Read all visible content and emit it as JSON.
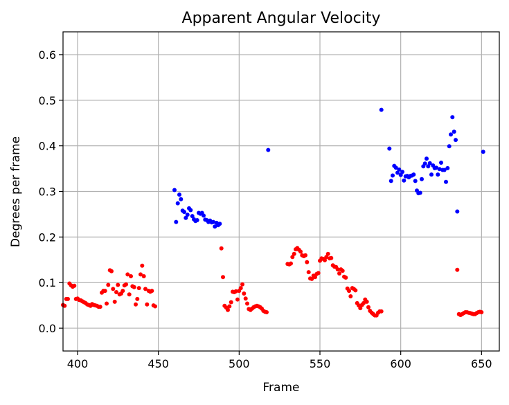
{
  "chart_data": {
    "type": "scatter",
    "title": "Apparent Angular Velocity",
    "xlabel": "Frame",
    "ylabel": "Degrees per frame",
    "xlim": [
      391,
      661
    ],
    "ylim": [
      -0.05,
      0.65
    ],
    "x_ticks": [
      400,
      450,
      500,
      550,
      600,
      650
    ],
    "y_ticks": [
      0.0,
      0.1,
      0.2,
      0.3,
      0.4,
      0.5,
      0.6
    ],
    "x_tick_labels": [
      "400",
      "450",
      "500",
      "550",
      "600",
      "650"
    ],
    "y_tick_labels": [
      "0.0",
      "0.1",
      "0.2",
      "0.3",
      "0.4",
      "0.5",
      "0.6"
    ],
    "grid": true,
    "legend": "none",
    "series": [
      {
        "color": "#0000ff",
        "points": [
          [
            460,
            0.303
          ],
          [
            461,
            0.233
          ],
          [
            462,
            0.274
          ],
          [
            463,
            0.293
          ],
          [
            464,
            0.283
          ],
          [
            465,
            0.258
          ],
          [
            466,
            0.255
          ],
          [
            467,
            0.242
          ],
          [
            468,
            0.249
          ],
          [
            469,
            0.263
          ],
          [
            470,
            0.259
          ],
          [
            471,
            0.246
          ],
          [
            472,
            0.239
          ],
          [
            473,
            0.235
          ],
          [
            474,
            0.237
          ],
          [
            475,
            0.253
          ],
          [
            476,
            0.251
          ],
          [
            477,
            0.253
          ],
          [
            478,
            0.247
          ],
          [
            479,
            0.238
          ],
          [
            480,
            0.237
          ],
          [
            481,
            0.233
          ],
          [
            482,
            0.236
          ],
          [
            483,
            0.232
          ],
          [
            484,
            0.233
          ],
          [
            485,
            0.223
          ],
          [
            486,
            0.231
          ],
          [
            487,
            0.226
          ],
          [
            488,
            0.229
          ],
          [
            518,
            0.391
          ],
          [
            588,
            0.479
          ],
          [
            593,
            0.394
          ],
          [
            594,
            0.323
          ],
          [
            595,
            0.335
          ],
          [
            596,
            0.356
          ],
          [
            597,
            0.352
          ],
          [
            598,
            0.341
          ],
          [
            599,
            0.348
          ],
          [
            600,
            0.336
          ],
          [
            601,
            0.343
          ],
          [
            602,
            0.324
          ],
          [
            603,
            0.333
          ],
          [
            604,
            0.334
          ],
          [
            605,
            0.331
          ],
          [
            606,
            0.334
          ],
          [
            607,
            0.335
          ],
          [
            608,
            0.337
          ],
          [
            609,
            0.323
          ],
          [
            610,
            0.302
          ],
          [
            611,
            0.296
          ],
          [
            612,
            0.297
          ],
          [
            613,
            0.327
          ],
          [
            614,
            0.355
          ],
          [
            615,
            0.361
          ],
          [
            616,
            0.372
          ],
          [
            617,
            0.355
          ],
          [
            618,
            0.362
          ],
          [
            619,
            0.337
          ],
          [
            620,
            0.357
          ],
          [
            621,
            0.351
          ],
          [
            622,
            0.352
          ],
          [
            623,
            0.337
          ],
          [
            624,
            0.349
          ],
          [
            625,
            0.363
          ],
          [
            626,
            0.347
          ],
          [
            627,
            0.347
          ],
          [
            628,
            0.321
          ],
          [
            629,
            0.351
          ],
          [
            630,
            0.399
          ],
          [
            631,
            0.425
          ],
          [
            632,
            0.463
          ],
          [
            633,
            0.431
          ],
          [
            634,
            0.413
          ],
          [
            635,
            0.256
          ],
          [
            651,
            0.387
          ]
        ]
      },
      {
        "color": "#ff0000",
        "points": [
          [
            391,
            0.051
          ],
          [
            392,
            0.049
          ],
          [
            393,
            0.064
          ],
          [
            394,
            0.064
          ],
          [
            395,
            0.098
          ],
          [
            396,
            0.094
          ],
          [
            397,
            0.091
          ],
          [
            398,
            0.093
          ],
          [
            399,
            0.064
          ],
          [
            400,
            0.065
          ],
          [
            401,
            0.062
          ],
          [
            402,
            0.061
          ],
          [
            403,
            0.059
          ],
          [
            404,
            0.057
          ],
          [
            405,
            0.055
          ],
          [
            406,
            0.052
          ],
          [
            407,
            0.051
          ],
          [
            408,
            0.049
          ],
          [
            409,
            0.053
          ],
          [
            410,
            0.051
          ],
          [
            411,
            0.05
          ],
          [
            412,
            0.049
          ],
          [
            413,
            0.047
          ],
          [
            414,
            0.047
          ],
          [
            415,
            0.078
          ],
          [
            416,
            0.082
          ],
          [
            417,
            0.082
          ],
          [
            418,
            0.054
          ],
          [
            419,
            0.095
          ],
          [
            420,
            0.127
          ],
          [
            421,
            0.125
          ],
          [
            422,
            0.086
          ],
          [
            423,
            0.058
          ],
          [
            424,
            0.079
          ],
          [
            425,
            0.095
          ],
          [
            426,
            0.074
          ],
          [
            427,
            0.076
          ],
          [
            428,
            0.082
          ],
          [
            429,
            0.094
          ],
          [
            430,
            0.096
          ],
          [
            431,
            0.118
          ],
          [
            432,
            0.074
          ],
          [
            433,
            0.114
          ],
          [
            434,
            0.092
          ],
          [
            435,
            0.09
          ],
          [
            436,
            0.052
          ],
          [
            437,
            0.064
          ],
          [
            438,
            0.088
          ],
          [
            439,
            0.118
          ],
          [
            440,
            0.137
          ],
          [
            441,
            0.114
          ],
          [
            442,
            0.086
          ],
          [
            443,
            0.052
          ],
          [
            444,
            0.082
          ],
          [
            445,
            0.08
          ],
          [
            446,
            0.082
          ],
          [
            447,
            0.05
          ],
          [
            448,
            0.048
          ],
          [
            489,
            0.175
          ],
          [
            490,
            0.112
          ],
          [
            491,
            0.049
          ],
          [
            492,
            0.045
          ],
          [
            493,
            0.04
          ],
          [
            494,
            0.048
          ],
          [
            495,
            0.057
          ],
          [
            496,
            0.08
          ],
          [
            497,
            0.079
          ],
          [
            498,
            0.081
          ],
          [
            499,
            0.063
          ],
          [
            500,
            0.082
          ],
          [
            501,
            0.088
          ],
          [
            502,
            0.096
          ],
          [
            503,
            0.076
          ],
          [
            504,
            0.065
          ],
          [
            505,
            0.054
          ],
          [
            506,
            0.042
          ],
          [
            507,
            0.04
          ],
          [
            508,
            0.043
          ],
          [
            509,
            0.046
          ],
          [
            510,
            0.048
          ],
          [
            511,
            0.049
          ],
          [
            512,
            0.048
          ],
          [
            513,
            0.046
          ],
          [
            514,
            0.043
          ],
          [
            515,
            0.038
          ],
          [
            516,
            0.036
          ],
          [
            517,
            0.035
          ],
          [
            530,
            0.141
          ],
          [
            531,
            0.14
          ],
          [
            532,
            0.142
          ],
          [
            533,
            0.156
          ],
          [
            534,
            0.163
          ],
          [
            535,
            0.173
          ],
          [
            536,
            0.176
          ],
          [
            537,
            0.172
          ],
          [
            538,
            0.168
          ],
          [
            539,
            0.16
          ],
          [
            540,
            0.158
          ],
          [
            541,
            0.16
          ],
          [
            542,
            0.145
          ],
          [
            543,
            0.123
          ],
          [
            544,
            0.109
          ],
          [
            545,
            0.108
          ],
          [
            546,
            0.115
          ],
          [
            547,
            0.112
          ],
          [
            548,
            0.119
          ],
          [
            549,
            0.121
          ],
          [
            550,
            0.148
          ],
          [
            551,
            0.153
          ],
          [
            552,
            0.152
          ],
          [
            553,
            0.149
          ],
          [
            554,
            0.156
          ],
          [
            555,
            0.163
          ],
          [
            556,
            0.153
          ],
          [
            557,
            0.154
          ],
          [
            558,
            0.138
          ],
          [
            559,
            0.135
          ],
          [
            560,
            0.134
          ],
          [
            561,
            0.129
          ],
          [
            562,
            0.12
          ],
          [
            563,
            0.129
          ],
          [
            564,
            0.126
          ],
          [
            565,
            0.113
          ],
          [
            566,
            0.111
          ],
          [
            567,
            0.087
          ],
          [
            568,
            0.082
          ],
          [
            569,
            0.07
          ],
          [
            570,
            0.088
          ],
          [
            571,
            0.086
          ],
          [
            572,
            0.083
          ],
          [
            573,
            0.055
          ],
          [
            574,
            0.05
          ],
          [
            575,
            0.044
          ],
          [
            576,
            0.051
          ],
          [
            577,
            0.055
          ],
          [
            578,
            0.063
          ],
          [
            579,
            0.058
          ],
          [
            580,
            0.046
          ],
          [
            581,
            0.038
          ],
          [
            582,
            0.034
          ],
          [
            583,
            0.031
          ],
          [
            584,
            0.028
          ],
          [
            585,
            0.028
          ],
          [
            586,
            0.034
          ],
          [
            587,
            0.037
          ],
          [
            588,
            0.037
          ],
          [
            635,
            0.128
          ],
          [
            636,
            0.031
          ],
          [
            637,
            0.029
          ],
          [
            638,
            0.031
          ],
          [
            639,
            0.033
          ],
          [
            640,
            0.035
          ],
          [
            641,
            0.035
          ],
          [
            642,
            0.034
          ],
          [
            643,
            0.033
          ],
          [
            644,
            0.032
          ],
          [
            645,
            0.031
          ],
          [
            646,
            0.031
          ],
          [
            647,
            0.033
          ],
          [
            648,
            0.035
          ],
          [
            649,
            0.036
          ],
          [
            650,
            0.035
          ]
        ]
      }
    ]
  }
}
